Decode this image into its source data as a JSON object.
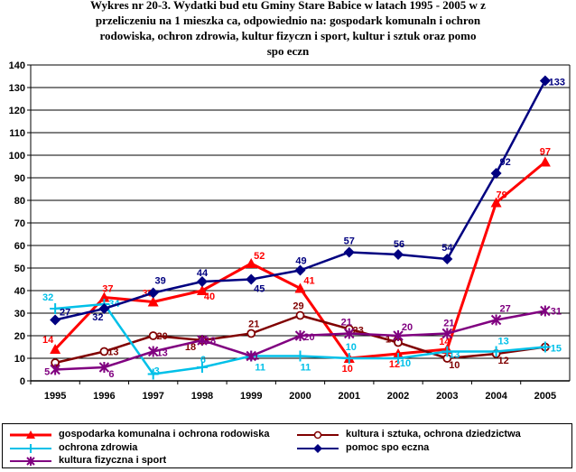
{
  "chart_data": {
    "type": "line",
    "title_lines": [
      "Wykres nr 20-3. Wydatki bud  etu Gminy Stare Babice w latach 1995 - 2005 w z",
      "przeliczeniu na 1 mieszka  ca, odpowiednio na: gospodark   komunaln   i ochron",
      "rodowiska, ochron   zdrowia, kultur   fizyczn   i sport, kultur   i sztuk   oraz pomo",
      "spo  eczn"
    ],
    "x": [
      "1995",
      "1996",
      "1997",
      "1998",
      "1999",
      "2000",
      "2001",
      "2002",
      "2003",
      "2004",
      "2005"
    ],
    "ylim": [
      0,
      140
    ],
    "yticks": [
      0,
      10,
      20,
      30,
      40,
      50,
      60,
      70,
      80,
      90,
      100,
      110,
      120,
      130,
      140
    ],
    "legend_position": "bottom",
    "series": [
      {
        "name": "gospodarka komunalna i ochrona   rodowiska",
        "color": "#ff0000",
        "marker": "triangle",
        "values": [
          14,
          37,
          35,
          40,
          52,
          41,
          10,
          12,
          14,
          79,
          97
        ],
        "labels": [
          "14",
          "37",
          "35",
          "40",
          "52",
          "41",
          "10",
          "12",
          "14",
          "79",
          "97"
        ]
      },
      {
        "name": "kultura i sztuka, ochrona dziedzictwa",
        "color": "#800000",
        "marker": "circle",
        "values": [
          8,
          13,
          20,
          18,
          21,
          29,
          23,
          17,
          10,
          12,
          15
        ],
        "labels": [
          "8",
          "13",
          "20",
          "18",
          "21",
          "29",
          "23",
          "17",
          "10",
          "12",
          ""
        ]
      },
      {
        "name": "ochrona zdrowia",
        "color": "#00c0e8",
        "marker": "plus",
        "values": [
          32,
          34,
          3,
          6,
          11,
          11,
          10,
          10,
          13,
          13,
          15
        ],
        "labels": [
          "32",
          "34",
          "3",
          "6",
          "11",
          "11",
          "10",
          "10",
          "13",
          "13",
          "15"
        ]
      },
      {
        "name": "pomoc spo  eczna",
        "color": "#000080",
        "marker": "diamond",
        "values": [
          27,
          32,
          39,
          44,
          45,
          49,
          57,
          56,
          54,
          92,
          133
        ],
        "labels": [
          "27",
          "32",
          "39",
          "44",
          "45",
          "49",
          "57",
          "56",
          "54",
          "92",
          "133"
        ]
      },
      {
        "name": "kultura fizyczna i sport",
        "color": "#800080",
        "marker": "star",
        "values": [
          5,
          6,
          13,
          18,
          11,
          20,
          21,
          20,
          21,
          27,
          31
        ],
        "labels": [
          "5",
          "6",
          "13",
          "18",
          "11",
          "20",
          "21",
          "20",
          "21",
          "27",
          "31"
        ]
      }
    ]
  }
}
